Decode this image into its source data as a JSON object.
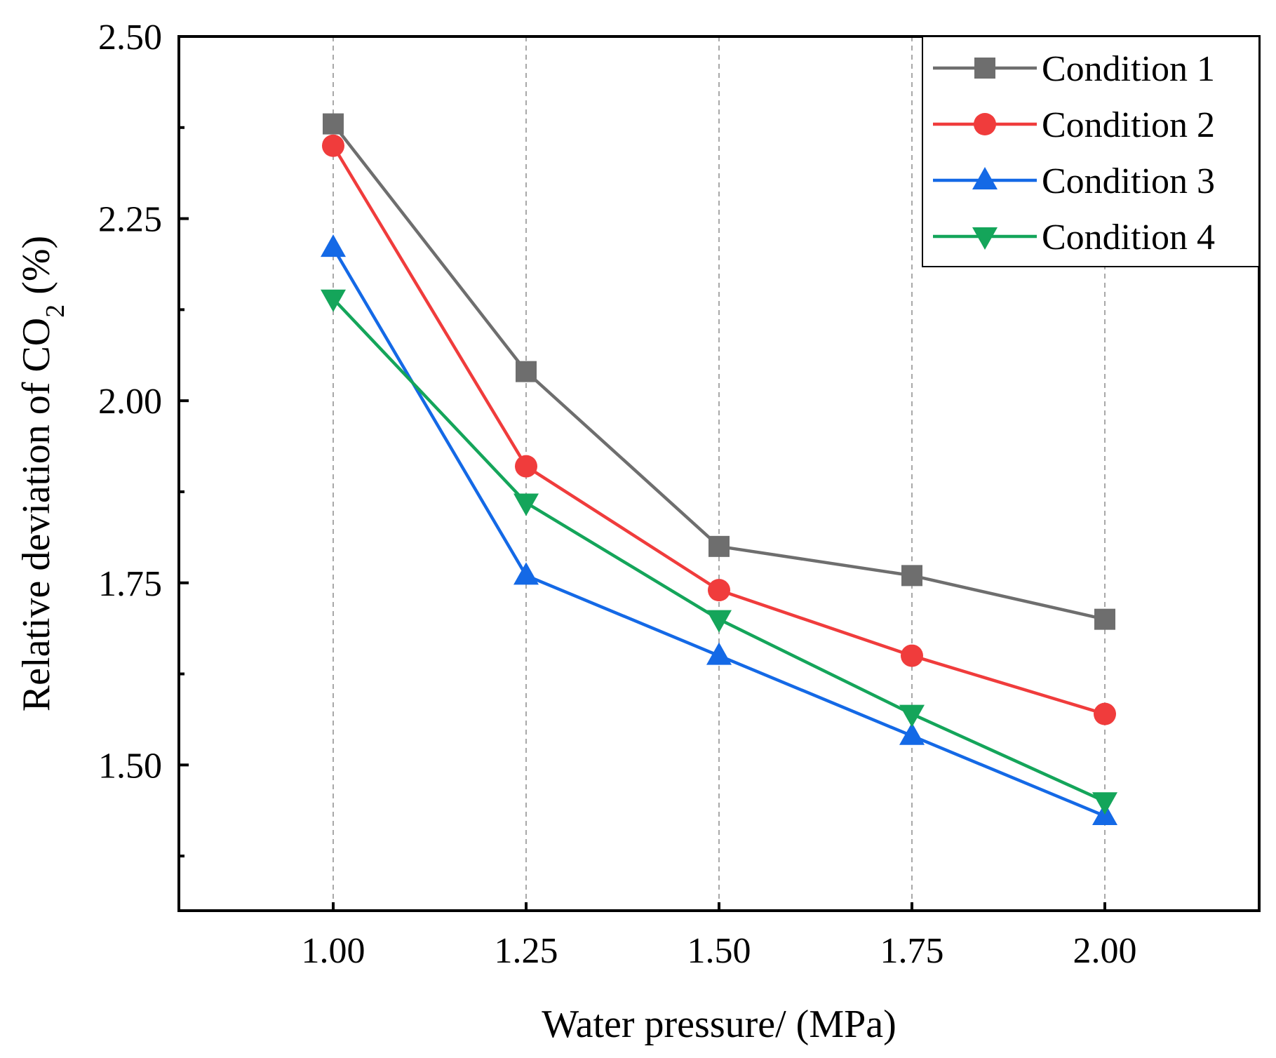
{
  "chart_data": {
    "type": "line",
    "title": "",
    "xlabel": "Water pressure/ (MPa)",
    "ylabel": {
      "prefix": "Relative deviation of CO",
      "subscript": "2",
      "suffix": " (%)"
    },
    "xlim": [
      0.8,
      2.2
    ],
    "ylim": [
      1.3,
      2.5
    ],
    "x_ticks": [
      1.0,
      1.25,
      1.5,
      1.75,
      2.0
    ],
    "x_tick_labels": [
      "1.00",
      "1.25",
      "1.50",
      "1.75",
      "2.00"
    ],
    "y_ticks": [
      1.5,
      1.75,
      2.0,
      2.25,
      2.5
    ],
    "y_tick_labels": [
      "1.50",
      "1.75",
      "2.00",
      "2.25",
      "2.50"
    ],
    "y_minor_ticks": [
      1.375,
      1.625,
      1.875,
      2.125,
      2.375
    ],
    "grid": "vertical dashed at x ticks",
    "legend_position": "top-right",
    "x": [
      1.0,
      1.25,
      1.5,
      1.75,
      2.0
    ],
    "series": [
      {
        "name": "Condition 1",
        "values": [
          2.38,
          2.04,
          1.8,
          1.76,
          1.7
        ],
        "color": "#6e6e6e",
        "marker": "square"
      },
      {
        "name": "Condition 2",
        "values": [
          2.35,
          1.91,
          1.74,
          1.65,
          1.57
        ],
        "color": "#f03c3c",
        "marker": "circle"
      },
      {
        "name": "Condition 3",
        "values": [
          2.21,
          1.76,
          1.65,
          1.54,
          1.43
        ],
        "color": "#1469e6",
        "marker": "triangle-up"
      },
      {
        "name": "Condition 4",
        "values": [
          2.14,
          1.86,
          1.7,
          1.57,
          1.45
        ],
        "color": "#14a55a",
        "marker": "triangle-down"
      }
    ]
  }
}
